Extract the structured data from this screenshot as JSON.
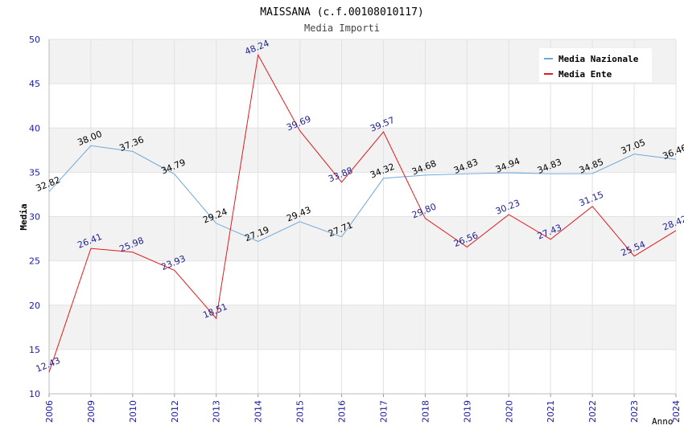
{
  "chart_data": {
    "type": "line",
    "title": "MAISSANA (c.f.00108010117)",
    "subtitle": "Media Importi",
    "xlabel": "Anno",
    "ylabel": "Media",
    "ylim": [
      10,
      50
    ],
    "yticks": [
      10,
      15,
      20,
      25,
      30,
      35,
      40,
      45,
      50
    ],
    "categories": [
      "2006",
      "2009",
      "2010",
      "2012",
      "2013",
      "2014",
      "2015",
      "2016",
      "2017",
      "2018",
      "2019",
      "2020",
      "2021",
      "2022",
      "2023",
      "2024"
    ],
    "legend_position": "top-right",
    "series": [
      {
        "name": "Media Nazionale",
        "color": "#6fa8dc",
        "label_color": "#000000",
        "values": [
          32.82,
          38.0,
          37.36,
          34.79,
          29.24,
          27.19,
          29.43,
          27.71,
          34.32,
          34.68,
          34.83,
          34.94,
          34.83,
          34.85,
          37.05,
          36.46
        ],
        "labels": [
          "32.82",
          "38.00",
          "37.36",
          "34.79",
          "29.24",
          "27.19",
          "29.43",
          "27.71",
          "34.32",
          "34.68",
          "34.83",
          "34.94",
          "34.83",
          "34.85",
          "37.05",
          "36.46"
        ]
      },
      {
        "name": "Media Ente",
        "color": "#e31a1c",
        "label_color": "#1f1f8f",
        "values": [
          12.43,
          26.41,
          25.98,
          23.93,
          18.51,
          48.24,
          39.69,
          33.88,
          39.57,
          29.8,
          26.56,
          30.23,
          27.43,
          31.15,
          25.54,
          28.42
        ],
        "labels": [
          "12.43",
          "26.41",
          "25.98",
          "23.93",
          "18.51",
          "48.24",
          "39.69",
          "33.88",
          "39.57",
          "29.80",
          "26.56",
          "30.23",
          "27.43",
          "31.15",
          "25.54",
          "28.42"
        ]
      }
    ]
  }
}
